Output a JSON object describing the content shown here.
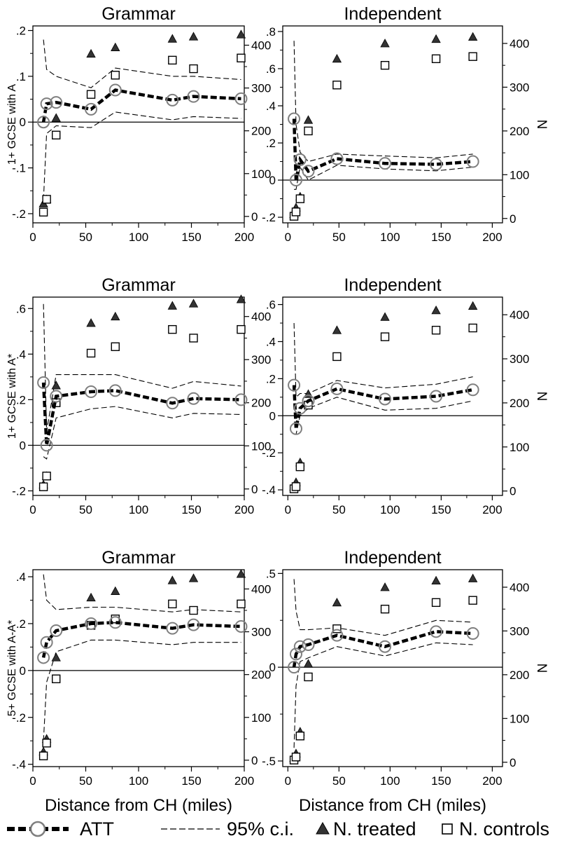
{
  "chart_data": [
    {
      "type": "line",
      "title": "Grammar",
      "ylabel": "1+ GCSE with A",
      "y2label": "",
      "xlabel": "",
      "xlim": [
        0,
        200
      ],
      "xticks": [
        0,
        50,
        100,
        150,
        200
      ],
      "ylim": [
        -0.22,
        0.21
      ],
      "yticks": [
        -0.2,
        -0.1,
        0,
        0.1,
        0.2
      ],
      "yticklabels": [
        "-.2",
        "-.1",
        "0",
        ".1",
        ".2"
      ],
      "y2lim": [
        -15,
        445
      ],
      "y2ticks": [
        0,
        100,
        200,
        300,
        400
      ],
      "x": [
        10,
        13,
        22,
        55,
        78,
        132,
        152,
        197
      ],
      "series": [
        {
          "name": "ATT",
          "axis": "left",
          "values": [
            0.0,
            0.04,
            0.043,
            0.028,
            0.07,
            0.048,
            0.056,
            0.051
          ]
        },
        {
          "name": "95% c.i. (upper)",
          "axis": "left",
          "values": [
            0.18,
            0.115,
            0.1,
            0.075,
            0.118,
            0.1,
            0.1,
            0.093
          ]
        },
        {
          "name": "95% c.i. (lower)",
          "axis": "left",
          "values": [
            -0.17,
            -0.025,
            -0.008,
            -0.012,
            0.022,
            0.005,
            0.012,
            0.008
          ]
        },
        {
          "name": "N. treated",
          "axis": "right",
          "values": [
            30,
            40,
            230,
            380,
            395,
            415,
            420,
            425
          ]
        },
        {
          "name": "N. controls",
          "axis": "right",
          "values": [
            10,
            40,
            190,
            285,
            330,
            365,
            345,
            370
          ]
        }
      ]
    },
    {
      "type": "line",
      "title": "Independent",
      "ylabel": "",
      "y2label": "N",
      "xlabel": "",
      "xlim": [
        -5,
        210
      ],
      "xticks": [
        0,
        50,
        100,
        150,
        200
      ],
      "ylim": [
        -0.23,
        0.83
      ],
      "yticks": [
        -0.2,
        0,
        0.2,
        0.4,
        0.6,
        0.8
      ],
      "yticklabels": [
        "-.2",
        "0",
        ".2",
        ".4",
        ".6",
        ".8"
      ],
      "y2lim": [
        -10,
        440
      ],
      "y2ticks": [
        0,
        100,
        200,
        300,
        400
      ],
      "x": [
        6,
        8,
        12,
        20,
        48,
        95,
        145,
        181
      ],
      "series": [
        {
          "name": "ATT",
          "axis": "left",
          "values": [
            0.33,
            0.0,
            0.11,
            0.048,
            0.115,
            0.09,
            0.085,
            0.1
          ]
        },
        {
          "name": "95% c.i. (upper)",
          "axis": "left",
          "values": [
            0.75,
            0.3,
            0.15,
            0.1,
            0.14,
            0.13,
            0.12,
            0.14
          ]
        },
        {
          "name": "95% c.i. (lower)",
          "axis": "left",
          "values": [
            -0.05,
            -0.05,
            0.07,
            0.0,
            0.08,
            0.06,
            0.05,
            0.07
          ]
        },
        {
          "name": "N. treated",
          "axis": "right",
          "values": [
            10,
            25,
            50,
            225,
            365,
            400,
            410,
            415
          ]
        },
        {
          "name": "N. controls",
          "axis": "right",
          "values": [
            5,
            15,
            45,
            200,
            305,
            350,
            365,
            370
          ]
        }
      ]
    },
    {
      "type": "line",
      "title": "Grammar",
      "ylabel": "1+ GCSE with A*",
      "y2label": "",
      "xlabel": "",
      "xlim": [
        0,
        200
      ],
      "xticks": [
        0,
        50,
        100,
        150,
        200
      ],
      "ylim": [
        -0.22,
        0.65
      ],
      "yticks": [
        -0.2,
        0,
        0.2,
        0.4,
        0.6
      ],
      "yticklabels": [
        "-.2",
        "0",
        ".2",
        ".4",
        ".6"
      ],
      "y2lim": [
        -15,
        445
      ],
      "y2ticks": [
        0,
        100,
        200,
        300,
        400
      ],
      "x": [
        10,
        13,
        22,
        55,
        78,
        132,
        152,
        197
      ],
      "series": [
        {
          "name": "ATT",
          "axis": "left",
          "values": [
            0.275,
            0.0,
            0.215,
            0.235,
            0.24,
            0.185,
            0.205,
            0.2
          ]
        },
        {
          "name": "95% c.i. (upper)",
          "axis": "left",
          "values": [
            0.62,
            0.06,
            0.31,
            0.31,
            0.31,
            0.25,
            0.28,
            0.26
          ]
        },
        {
          "name": "95% c.i. (lower)",
          "axis": "left",
          "values": [
            -0.05,
            -0.06,
            0.12,
            0.16,
            0.17,
            0.12,
            0.14,
            0.135
          ]
        },
        {
          "name": "N. treated",
          "axis": "right",
          "values": [
            10,
            30,
            240,
            385,
            400,
            425,
            430,
            440
          ]
        },
        {
          "name": "N. controls",
          "axis": "right",
          "values": [
            5,
            30,
            200,
            315,
            330,
            370,
            350,
            370
          ]
        }
      ]
    },
    {
      "type": "line",
      "title": "Independent",
      "ylabel": "",
      "y2label": "N",
      "xlabel": "",
      "xlim": [
        -5,
        210
      ],
      "xticks": [
        0,
        50,
        100,
        150,
        200
      ],
      "ylim": [
        -0.43,
        0.64
      ],
      "yticks": [
        -0.4,
        -0.2,
        0,
        0.2,
        0.4,
        0.6
      ],
      "yticklabels": [
        "-.4",
        "-.2",
        "0",
        ".2",
        ".4",
        ".6"
      ],
      "y2lim": [
        -10,
        440
      ],
      "y2ticks": [
        0,
        100,
        200,
        300,
        400
      ],
      "x": [
        6,
        8,
        12,
        20,
        48,
        95,
        145,
        181
      ],
      "series": [
        {
          "name": "ATT",
          "axis": "left",
          "values": [
            0.165,
            -0.07,
            0.04,
            0.08,
            0.145,
            0.09,
            0.105,
            0.14
          ]
        },
        {
          "name": "95% c.i. (upper)",
          "axis": "left",
          "values": [
            0.5,
            0.1,
            0.12,
            0.12,
            0.19,
            0.15,
            0.17,
            0.21
          ]
        },
        {
          "name": "95% c.i. (lower)",
          "axis": "left",
          "values": [
            -0.1,
            -0.1,
            0.0,
            0.04,
            0.1,
            0.03,
            0.04,
            0.08
          ]
        },
        {
          "name": "N. treated",
          "axis": "right",
          "values": [
            10,
            20,
            65,
            220,
            365,
            395,
            410,
            420
          ]
        },
        {
          "name": "N. controls",
          "axis": "right",
          "values": [
            5,
            10,
            55,
            195,
            305,
            350,
            365,
            370
          ]
        }
      ]
    },
    {
      "type": "line",
      "title": "Grammar",
      "ylabel": "5+ GCSE with A-A*",
      "y2label": "",
      "xlabel": "Distance from CH (miles)",
      "xlim": [
        0,
        200
      ],
      "xticks": [
        0,
        50,
        100,
        150,
        200
      ],
      "ylim": [
        -0.41,
        0.43
      ],
      "yticks": [
        -0.4,
        -0.2,
        0,
        0.2,
        0.4
      ],
      "yticklabels": [
        "-.4",
        "-.2",
        "0",
        ".2",
        ".4"
      ],
      "y2lim": [
        -15,
        445
      ],
      "y2ticks": [
        0,
        100,
        200,
        300,
        400
      ],
      "x": [
        10,
        13,
        22,
        55,
        78,
        132,
        152,
        197
      ],
      "series": [
        {
          "name": "ATT",
          "axis": "left",
          "values": [
            0.055,
            0.12,
            0.17,
            0.2,
            0.205,
            0.18,
            0.195,
            0.188
          ]
        },
        {
          "name": "95% c.i. (upper)",
          "axis": "left",
          "values": [
            0.41,
            0.3,
            0.26,
            0.27,
            0.27,
            0.25,
            0.26,
            0.25
          ]
        },
        {
          "name": "95% c.i. (lower)",
          "axis": "left",
          "values": [
            -0.3,
            -0.05,
            0.08,
            0.13,
            0.13,
            0.11,
            0.12,
            0.12
          ]
        },
        {
          "name": "N. treated",
          "axis": "right",
          "values": [
            20,
            50,
            240,
            380,
            395,
            420,
            425,
            435
          ]
        },
        {
          "name": "N. controls",
          "axis": "right",
          "values": [
            10,
            40,
            190,
            315,
            330,
            365,
            350,
            365
          ]
        }
      ]
    },
    {
      "type": "line",
      "title": "Independent",
      "ylabel": "",
      "y2label": "N",
      "xlabel": "Distance from CH (miles)",
      "xlim": [
        -5,
        210
      ],
      "xticks": [
        0,
        50,
        100,
        150,
        200
      ],
      "ylim": [
        -0.53,
        0.52
      ],
      "yticks": [
        -0.5,
        0,
        0.5
      ],
      "yticklabels": [
        "-.5",
        "0",
        ".5"
      ],
      "y2lim": [
        -10,
        440
      ],
      "y2ticks": [
        0,
        100,
        200,
        300,
        400
      ],
      "x": [
        6,
        8,
        12,
        20,
        48,
        95,
        145,
        181
      ],
      "series": [
        {
          "name": "ATT",
          "axis": "left",
          "values": [
            0.0,
            0.07,
            0.11,
            0.12,
            0.17,
            0.11,
            0.19,
            0.18
          ]
        },
        {
          "name": "95% c.i. (upper)",
          "axis": "left",
          "values": [
            0.47,
            0.3,
            0.2,
            0.2,
            0.21,
            0.17,
            0.25,
            0.24
          ]
        },
        {
          "name": "95% c.i. (lower)",
          "axis": "left",
          "values": [
            -0.43,
            -0.1,
            0.03,
            0.05,
            0.11,
            0.06,
            0.13,
            0.12
          ]
        },
        {
          "name": "N. treated",
          "axis": "right",
          "values": [
            10,
            20,
            70,
            225,
            365,
            400,
            415,
            420
          ]
        },
        {
          "name": "N. controls",
          "axis": "right",
          "values": [
            5,
            12,
            60,
            195,
            305,
            350,
            365,
            370
          ]
        }
      ]
    }
  ],
  "legend": {
    "att": "ATT",
    "ci": "95% c.i.",
    "treated": "N. treated",
    "controls": "N. controls"
  },
  "colors": {
    "ink": "#000000",
    "att_marker": "#7f7f7f",
    "treated_marker": "#333333"
  }
}
